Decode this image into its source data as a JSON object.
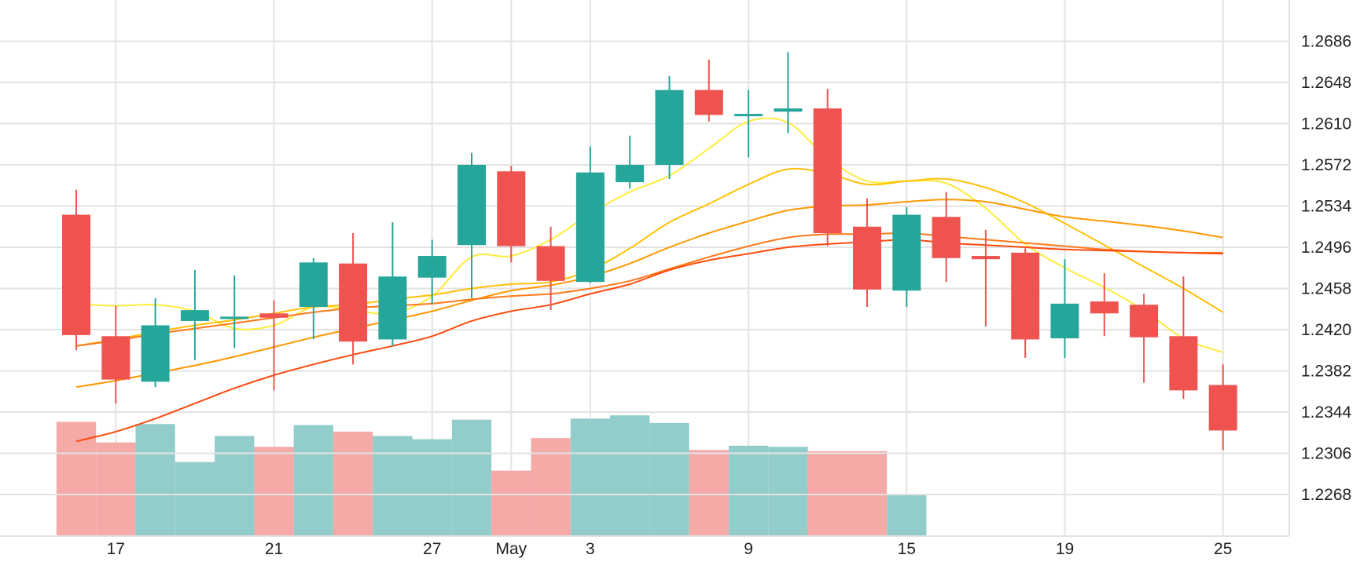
{
  "chart_data": {
    "type": "candlestick",
    "colors": {
      "up": "#26a69a",
      "down": "#ef5350",
      "volume_up": "#92cdcb",
      "volume_down": "#f5aaa8",
      "grid": "#e3e3e3"
    },
    "y_axis": {
      "position": "right",
      "ticks": [
        1.2268,
        1.2306,
        1.2344,
        1.2382,
        1.242,
        1.2458,
        1.2496,
        1.2534,
        1.2572,
        1.261,
        1.2648,
        1.2686
      ]
    },
    "x_axis": {
      "ticks": [
        {
          "index": 1,
          "label": "17"
        },
        {
          "index": 5,
          "label": "21"
        },
        {
          "index": 9,
          "label": "27"
        },
        {
          "index": 11,
          "label": "May"
        },
        {
          "index": 13,
          "label": "3"
        },
        {
          "index": 17,
          "label": "9"
        },
        {
          "index": 21,
          "label": "15"
        },
        {
          "index": 25,
          "label": "19"
        },
        {
          "index": 29,
          "label": "25"
        }
      ]
    },
    "candles": [
      {
        "o": 1.2526,
        "h": 1.2549,
        "l": 1.2401,
        "c": 1.2415
      },
      {
        "o": 1.2414,
        "h": 1.2442,
        "l": 1.2352,
        "c": 1.2374
      },
      {
        "o": 1.2372,
        "h": 1.2449,
        "l": 1.2367,
        "c": 1.2424
      },
      {
        "o": 1.2428,
        "h": 1.2475,
        "l": 1.2392,
        "c": 1.2438
      },
      {
        "o": 1.2432,
        "h": 1.247,
        "l": 1.2403,
        "c": 1.2432
      },
      {
        "o": 1.2435,
        "h": 1.2447,
        "l": 1.2364,
        "c": 1.2431
      },
      {
        "o": 1.2441,
        "h": 1.2486,
        "l": 1.2411,
        "c": 1.2482
      },
      {
        "o": 1.2481,
        "h": 1.2509,
        "l": 1.2388,
        "c": 1.2409
      },
      {
        "o": 1.2411,
        "h": 1.2519,
        "l": 1.2405,
        "c": 1.2469
      },
      {
        "o": 1.2468,
        "h": 1.2503,
        "l": 1.2444,
        "c": 1.2488
      },
      {
        "o": 1.2498,
        "h": 1.2583,
        "l": 1.2449,
        "c": 1.2572
      },
      {
        "o": 1.2566,
        "h": 1.2571,
        "l": 1.2482,
        "c": 1.2497
      },
      {
        "o": 1.2497,
        "h": 1.2515,
        "l": 1.2438,
        "c": 1.2465
      },
      {
        "o": 1.2464,
        "h": 1.2589,
        "l": 1.2463,
        "c": 1.2565
      },
      {
        "o": 1.2556,
        "h": 1.2599,
        "l": 1.255,
        "c": 1.2572
      },
      {
        "o": 1.2572,
        "h": 1.2654,
        "l": 1.2559,
        "c": 1.2641
      },
      {
        "o": 1.2641,
        "h": 1.2669,
        "l": 1.2612,
        "c": 1.2618
      },
      {
        "o": 1.2619,
        "h": 1.2641,
        "l": 1.2579,
        "c": 1.2619
      },
      {
        "o": 1.2621,
        "h": 1.2676,
        "l": 1.2601,
        "c": 1.2624
      },
      {
        "o": 1.2624,
        "h": 1.2642,
        "l": 1.2497,
        "c": 1.2509
      },
      {
        "o": 1.2515,
        "h": 1.2541,
        "l": 1.2441,
        "c": 1.2457
      },
      {
        "o": 1.2456,
        "h": 1.2533,
        "l": 1.2441,
        "c": 1.2526
      },
      {
        "o": 1.2524,
        "h": 1.2547,
        "l": 1.2464,
        "c": 1.2486
      },
      {
        "o": 1.2488,
        "h": 1.2512,
        "l": 1.2423,
        "c": 1.2485
      },
      {
        "o": 1.2491,
        "h": 1.2495,
        "l": 1.2394,
        "c": 1.2411
      },
      {
        "o": 1.2412,
        "h": 1.2485,
        "l": 1.2394,
        "c": 1.2444
      },
      {
        "o": 1.2446,
        "h": 1.2472,
        "l": 1.2414,
        "c": 1.2435
      },
      {
        "o": 1.2443,
        "h": 1.2453,
        "l": 1.2371,
        "c": 1.2413
      },
      {
        "o": 1.2414,
        "h": 1.2469,
        "l": 1.2356,
        "c": 1.2364
      },
      {
        "o": 1.2369,
        "h": 1.2388,
        "l": 1.2309,
        "c": 1.2327
      }
    ],
    "volume_bars": [
      {
        "start": 0,
        "end": 0,
        "value": 1.2335,
        "dir": "down"
      },
      {
        "start": 1,
        "end": 1,
        "value": 1.2316,
        "dir": "down"
      },
      {
        "start": 2,
        "end": 2,
        "value": 1.2333,
        "dir": "up"
      },
      {
        "start": 3,
        "end": 3,
        "value": 1.2298,
        "dir": "up"
      },
      {
        "start": 4,
        "end": 4,
        "value": 1.2322,
        "dir": "up"
      },
      {
        "start": 5,
        "end": 5,
        "value": 1.2312,
        "dir": "down"
      },
      {
        "start": 6,
        "end": 6,
        "value": 1.2332,
        "dir": "up"
      },
      {
        "start": 7,
        "end": 7,
        "value": 1.2326,
        "dir": "down"
      },
      {
        "start": 8,
        "end": 8,
        "value": 1.2322,
        "dir": "up"
      },
      {
        "start": 9,
        "end": 9,
        "value": 1.2319,
        "dir": "up"
      },
      {
        "start": 10,
        "end": 10,
        "value": 1.2337,
        "dir": "up"
      },
      {
        "start": 11,
        "end": 11,
        "value": 1.229,
        "dir": "down"
      },
      {
        "start": 12,
        "end": 12,
        "value": 1.232,
        "dir": "down"
      },
      {
        "start": 13,
        "end": 13,
        "value": 1.2338,
        "dir": "up"
      },
      {
        "start": 14,
        "end": 14,
        "value": 1.2341,
        "dir": "up"
      },
      {
        "start": 15,
        "end": 15,
        "value": 1.2334,
        "dir": "up"
      },
      {
        "start": 16,
        "end": 16,
        "value": 1.2309,
        "dir": "down"
      },
      {
        "start": 17,
        "end": 17,
        "value": 1.2313,
        "dir": "up"
      },
      {
        "start": 18,
        "end": 18,
        "value": 1.2312,
        "dir": "up"
      },
      {
        "start": 19,
        "end": 20,
        "value": 1.2308,
        "dir": "down"
      },
      {
        "start": 21,
        "end": 21,
        "value": 1.2268,
        "dir": "up"
      }
    ],
    "moving_averages": [
      {
        "color": "#ffeb3b",
        "points": [
          [
            0,
            1.2444
          ],
          [
            1,
            1.2442
          ],
          [
            2,
            1.2443
          ],
          [
            3,
            1.2437
          ],
          [
            4,
            1.2421
          ],
          [
            5,
            1.2424
          ],
          [
            6,
            1.2441
          ],
          [
            7,
            1.2438
          ],
          [
            8,
            1.2435
          ],
          [
            9,
            1.2451
          ],
          [
            10,
            1.2487
          ],
          [
            11,
            1.2488
          ],
          [
            12,
            1.2503
          ],
          [
            13,
            1.2527
          ],
          [
            14,
            1.2547
          ],
          [
            15,
            1.2562
          ],
          [
            16,
            1.2587
          ],
          [
            17,
            1.2612
          ],
          [
            18,
            1.2611
          ],
          [
            19,
            1.2578
          ],
          [
            20,
            1.2557
          ],
          [
            21,
            1.2557
          ],
          [
            22,
            1.2555
          ],
          [
            23,
            1.2532
          ],
          [
            24,
            1.2499
          ],
          [
            25,
            1.2477
          ],
          [
            26,
            1.2459
          ],
          [
            27,
            1.2438
          ],
          [
            28,
            1.2412
          ],
          [
            29,
            1.2399
          ]
        ]
      },
      {
        "color": "#ffc107",
        "points": [
          [
            0,
            1.2405
          ],
          [
            1,
            1.2411
          ],
          [
            2,
            1.2418
          ],
          [
            3,
            1.2424
          ],
          [
            4,
            1.2429
          ],
          [
            5,
            1.2435
          ],
          [
            6,
            1.2441
          ],
          [
            7,
            1.2443
          ],
          [
            8,
            1.2448
          ],
          [
            9,
            1.2452
          ],
          [
            10,
            1.2458
          ],
          [
            11,
            1.2462
          ],
          [
            12,
            1.2464
          ],
          [
            13,
            1.2475
          ],
          [
            14,
            1.2495
          ],
          [
            15,
            1.2519
          ],
          [
            16,
            1.2536
          ],
          [
            17,
            1.2554
          ],
          [
            18,
            1.2568
          ],
          [
            19,
            1.2564
          ],
          [
            20,
            1.2554
          ],
          [
            21,
            1.2557
          ],
          [
            22,
            1.2559
          ],
          [
            23,
            1.2551
          ],
          [
            24,
            1.2537
          ],
          [
            25,
            1.2518
          ],
          [
            26,
            1.2498
          ],
          [
            27,
            1.2478
          ],
          [
            28,
            1.2458
          ],
          [
            29,
            1.2436
          ]
        ]
      },
      {
        "color": "#ff9800",
        "points": [
          [
            0,
            1.2367
          ],
          [
            1,
            1.2373
          ],
          [
            2,
            1.238
          ],
          [
            3,
            1.2387
          ],
          [
            4,
            1.2395
          ],
          [
            5,
            1.2404
          ],
          [
            6,
            1.2413
          ],
          [
            7,
            1.2421
          ],
          [
            8,
            1.2429
          ],
          [
            9,
            1.2437
          ],
          [
            10,
            1.2447
          ],
          [
            11,
            1.2456
          ],
          [
            12,
            1.2461
          ],
          [
            13,
            1.2469
          ],
          [
            14,
            1.2481
          ],
          [
            15,
            1.2496
          ],
          [
            16,
            1.2509
          ],
          [
            17,
            1.252
          ],
          [
            18,
            1.253
          ],
          [
            19,
            1.2534
          ],
          [
            20,
            1.2535
          ],
          [
            21,
            1.2538
          ],
          [
            22,
            1.254
          ],
          [
            23,
            1.2538
          ],
          [
            24,
            1.2531
          ],
          [
            25,
            1.2524
          ],
          [
            26,
            1.252
          ],
          [
            27,
            1.2516
          ],
          [
            28,
            1.2511
          ],
          [
            29,
            1.2505
          ]
        ]
      },
      {
        "color": "#ff7a1a",
        "points": [
          [
            0,
            1.2405
          ],
          [
            1,
            1.241
          ],
          [
            2,
            1.2416
          ],
          [
            3,
            1.2421
          ],
          [
            4,
            1.2426
          ],
          [
            5,
            1.2431
          ],
          [
            6,
            1.2436
          ],
          [
            7,
            1.244
          ],
          [
            8,
            1.2442
          ],
          [
            9,
            1.2444
          ],
          [
            10,
            1.2448
          ],
          [
            11,
            1.2451
          ],
          [
            12,
            1.2453
          ],
          [
            13,
            1.2458
          ],
          [
            14,
            1.2465
          ],
          [
            15,
            1.2476
          ],
          [
            16,
            1.2487
          ],
          [
            17,
            1.2497
          ],
          [
            18,
            1.2505
          ],
          [
            19,
            1.2508
          ],
          [
            20,
            1.2508
          ],
          [
            21,
            1.2509
          ],
          [
            22,
            1.2506
          ],
          [
            23,
            1.2503
          ],
          [
            24,
            1.25
          ],
          [
            25,
            1.2497
          ],
          [
            26,
            1.2494
          ],
          [
            27,
            1.2492
          ],
          [
            28,
            1.2491
          ],
          [
            29,
            1.2491
          ]
        ]
      },
      {
        "color": "#ff4a0d",
        "points": [
          [
            0,
            1.2317
          ],
          [
            1,
            1.2326
          ],
          [
            2,
            1.2338
          ],
          [
            3,
            1.2352
          ],
          [
            4,
            1.2366
          ],
          [
            5,
            1.2378
          ],
          [
            6,
            1.2388
          ],
          [
            7,
            1.2397
          ],
          [
            8,
            1.2405
          ],
          [
            9,
            1.2414
          ],
          [
            10,
            1.2428
          ],
          [
            11,
            1.2437
          ],
          [
            12,
            1.2443
          ],
          [
            13,
            1.2453
          ],
          [
            14,
            1.2462
          ],
          [
            15,
            1.2475
          ],
          [
            16,
            1.2484
          ],
          [
            17,
            1.249
          ],
          [
            18,
            1.2496
          ],
          [
            19,
            1.2499
          ],
          [
            20,
            1.2501
          ],
          [
            21,
            1.2503
          ],
          [
            22,
            1.25
          ],
          [
            23,
            1.2498
          ],
          [
            24,
            1.2496
          ],
          [
            25,
            1.2494
          ],
          [
            26,
            1.2493
          ],
          [
            27,
            1.2492
          ],
          [
            28,
            1.2491
          ],
          [
            29,
            1.249
          ]
        ]
      }
    ]
  }
}
